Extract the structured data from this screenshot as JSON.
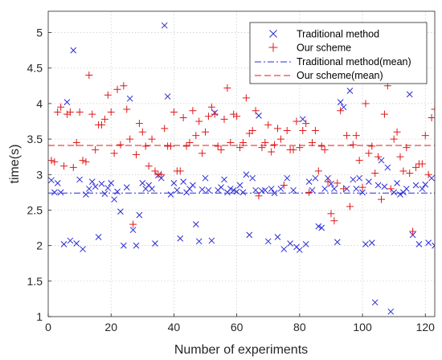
{
  "chart_data": {
    "type": "scatter",
    "title": "",
    "xlabel": "Number of experiments",
    "ylabel": "time(s)",
    "xlim": [
      0,
      123
    ],
    "ylim": [
      1,
      5.3
    ],
    "xticks": [
      0,
      20,
      40,
      60,
      80,
      100,
      120
    ],
    "yticks": [
      1,
      1.5,
      2,
      2.5,
      3,
      3.5,
      4,
      4.5,
      5
    ],
    "grid": true,
    "legend_position": "top-right",
    "series": [
      {
        "name": "Traditional method",
        "kind": "scatter",
        "marker": "x",
        "color": "#2b2bd6",
        "x": [
          1,
          2,
          3,
          4,
          5,
          6,
          7,
          8,
          9,
          10,
          11,
          12,
          13,
          14,
          15,
          16,
          17,
          18,
          19,
          20,
          21,
          22,
          23,
          24,
          25,
          26,
          27,
          28,
          29,
          30,
          31,
          32,
          33,
          34,
          35,
          36,
          37,
          38,
          39,
          40,
          41,
          42,
          43,
          44,
          45,
          46,
          47,
          48,
          49,
          50,
          51,
          52,
          53,
          54,
          55,
          56,
          57,
          58,
          59,
          60,
          61,
          62,
          63,
          64,
          65,
          66,
          67,
          68,
          69,
          70,
          71,
          72,
          73,
          74,
          75,
          76,
          77,
          78,
          79,
          80,
          81,
          82,
          83,
          84,
          85,
          86,
          87,
          88,
          89,
          90,
          91,
          92,
          93,
          94,
          95,
          96,
          97,
          98,
          99,
          100,
          101,
          102,
          103,
          104,
          105,
          106,
          107,
          108,
          109,
          110,
          111,
          112,
          113,
          114,
          115,
          116,
          117,
          118,
          119,
          120,
          121,
          122,
          123
        ],
        "y": [
          2.92,
          2.75,
          2.88,
          2.75,
          2.02,
          4.02,
          2.07,
          4.75,
          2.03,
          2.93,
          1.95,
          2.72,
          2.8,
          2.9,
          2.83,
          2.12,
          2.87,
          2.73,
          2.81,
          2.88,
          2.65,
          2.76,
          2.48,
          2.0,
          2.82,
          4.07,
          2.22,
          2.0,
          2.43,
          2.88,
          2.8,
          2.85,
          2.8,
          2.03,
          2.99,
          2.95,
          5.1,
          4.1,
          2.72,
          2.88,
          2.78,
          2.1,
          2.9,
          2.75,
          2.8,
          2.85,
          2.3,
          2.06,
          2.79,
          2.95,
          2.78,
          2.07,
          3.87,
          2.78,
          2.82,
          2.93,
          2.75,
          2.8,
          2.78,
          2.76,
          2.85,
          2.75,
          3.0,
          2.15,
          2.95,
          2.78,
          3.83,
          2.77,
          2.78,
          2.06,
          2.8,
          2.74,
          2.12,
          2.8,
          1.95,
          2.95,
          2.03,
          2.78,
          1.98,
          1.94,
          3.78,
          2.02,
          2.9,
          2.78,
          2.95,
          2.27,
          2.25,
          2.8,
          2.95,
          2.87,
          2.8,
          2.05,
          4.02,
          3.95,
          2.8,
          4.18,
          2.93,
          2.8,
          2.95,
          2.75,
          2.02,
          2.9,
          2.04,
          1.2,
          2.85,
          3.2,
          2.83,
          3.1,
          1.07,
          2.75,
          2.88,
          2.72,
          2.75,
          2.8,
          4.13,
          2.15,
          2.85,
          2.02,
          2.8,
          2.86,
          2.04,
          2.95,
          2.0
        ]
      },
      {
        "name": "Our scheme",
        "kind": "scatter",
        "marker": "+",
        "color": "#e01818",
        "x": [
          1,
          2,
          3,
          4,
          5,
          6,
          7,
          8,
          9,
          10,
          11,
          12,
          13,
          14,
          15,
          16,
          17,
          18,
          19,
          20,
          21,
          22,
          23,
          24,
          25,
          26,
          27,
          28,
          29,
          30,
          31,
          32,
          33,
          34,
          35,
          36,
          37,
          38,
          39,
          40,
          41,
          42,
          43,
          44,
          45,
          46,
          47,
          48,
          49,
          50,
          51,
          52,
          53,
          54,
          55,
          56,
          57,
          58,
          59,
          60,
          61,
          62,
          63,
          64,
          65,
          66,
          67,
          68,
          69,
          70,
          71,
          72,
          73,
          74,
          75,
          76,
          77,
          78,
          79,
          80,
          81,
          82,
          83,
          84,
          85,
          86,
          87,
          88,
          89,
          90,
          91,
          92,
          93,
          94,
          95,
          96,
          97,
          98,
          99,
          100,
          101,
          102,
          103,
          104,
          105,
          106,
          107,
          108,
          109,
          110,
          111,
          112,
          113,
          114,
          115,
          116,
          117,
          118,
          119,
          120,
          121,
          122,
          123
        ],
        "y": [
          3.2,
          3.18,
          3.88,
          3.95,
          3.12,
          3.85,
          3.88,
          3.1,
          3.45,
          3.88,
          3.2,
          3.18,
          4.4,
          3.85,
          3.35,
          3.7,
          3.7,
          3.78,
          4.12,
          3.88,
          3.3,
          4.2,
          3.42,
          4.25,
          3.92,
          3.5,
          2.3,
          3.28,
          3.72,
          3.6,
          3.4,
          3.12,
          3.5,
          3.05,
          3.0,
          3.0,
          3.65,
          3.4,
          3.4,
          3.88,
          3.05,
          3.05,
          3.8,
          3.4,
          3.45,
          3.9,
          3.55,
          3.75,
          3.3,
          3.6,
          3.82,
          3.95,
          3.85,
          3.4,
          3.35,
          3.78,
          4.22,
          3.45,
          3.85,
          3.82,
          3.38,
          3.45,
          4.08,
          3.58,
          3.62,
          3.9,
          2.7,
          3.38,
          3.45,
          3.7,
          3.32,
          3.42,
          3.65,
          3.5,
          2.85,
          3.62,
          3.35,
          3.35,
          3.75,
          3.38,
          3.62,
          3.72,
          2.75,
          3.45,
          3.62,
          3.05,
          3.4,
          3.35,
          2.9,
          2.45,
          2.35,
          2.88,
          3.9,
          2.8,
          3.55,
          2.55,
          3.42,
          3.55,
          3.2,
          2.82,
          4.0,
          3.3,
          3.4,
          3.02,
          3.25,
          2.65,
          3.85,
          4.25,
          2.8,
          3.5,
          3.6,
          3.25,
          3.05,
          3.38,
          3.02,
          2.2,
          3.1,
          3.15,
          3.15,
          3.55,
          3.0,
          3.8,
          3.92
        ]
      },
      {
        "name": "Traditional method(mean)",
        "kind": "hline",
        "dash": "dashdot",
        "color": "#2b2bd6",
        "value": 2.74
      },
      {
        "name": "Our scheme(mean)",
        "kind": "hline",
        "dash": "dashed",
        "color": "#e01818",
        "value": 3.41
      }
    ]
  }
}
